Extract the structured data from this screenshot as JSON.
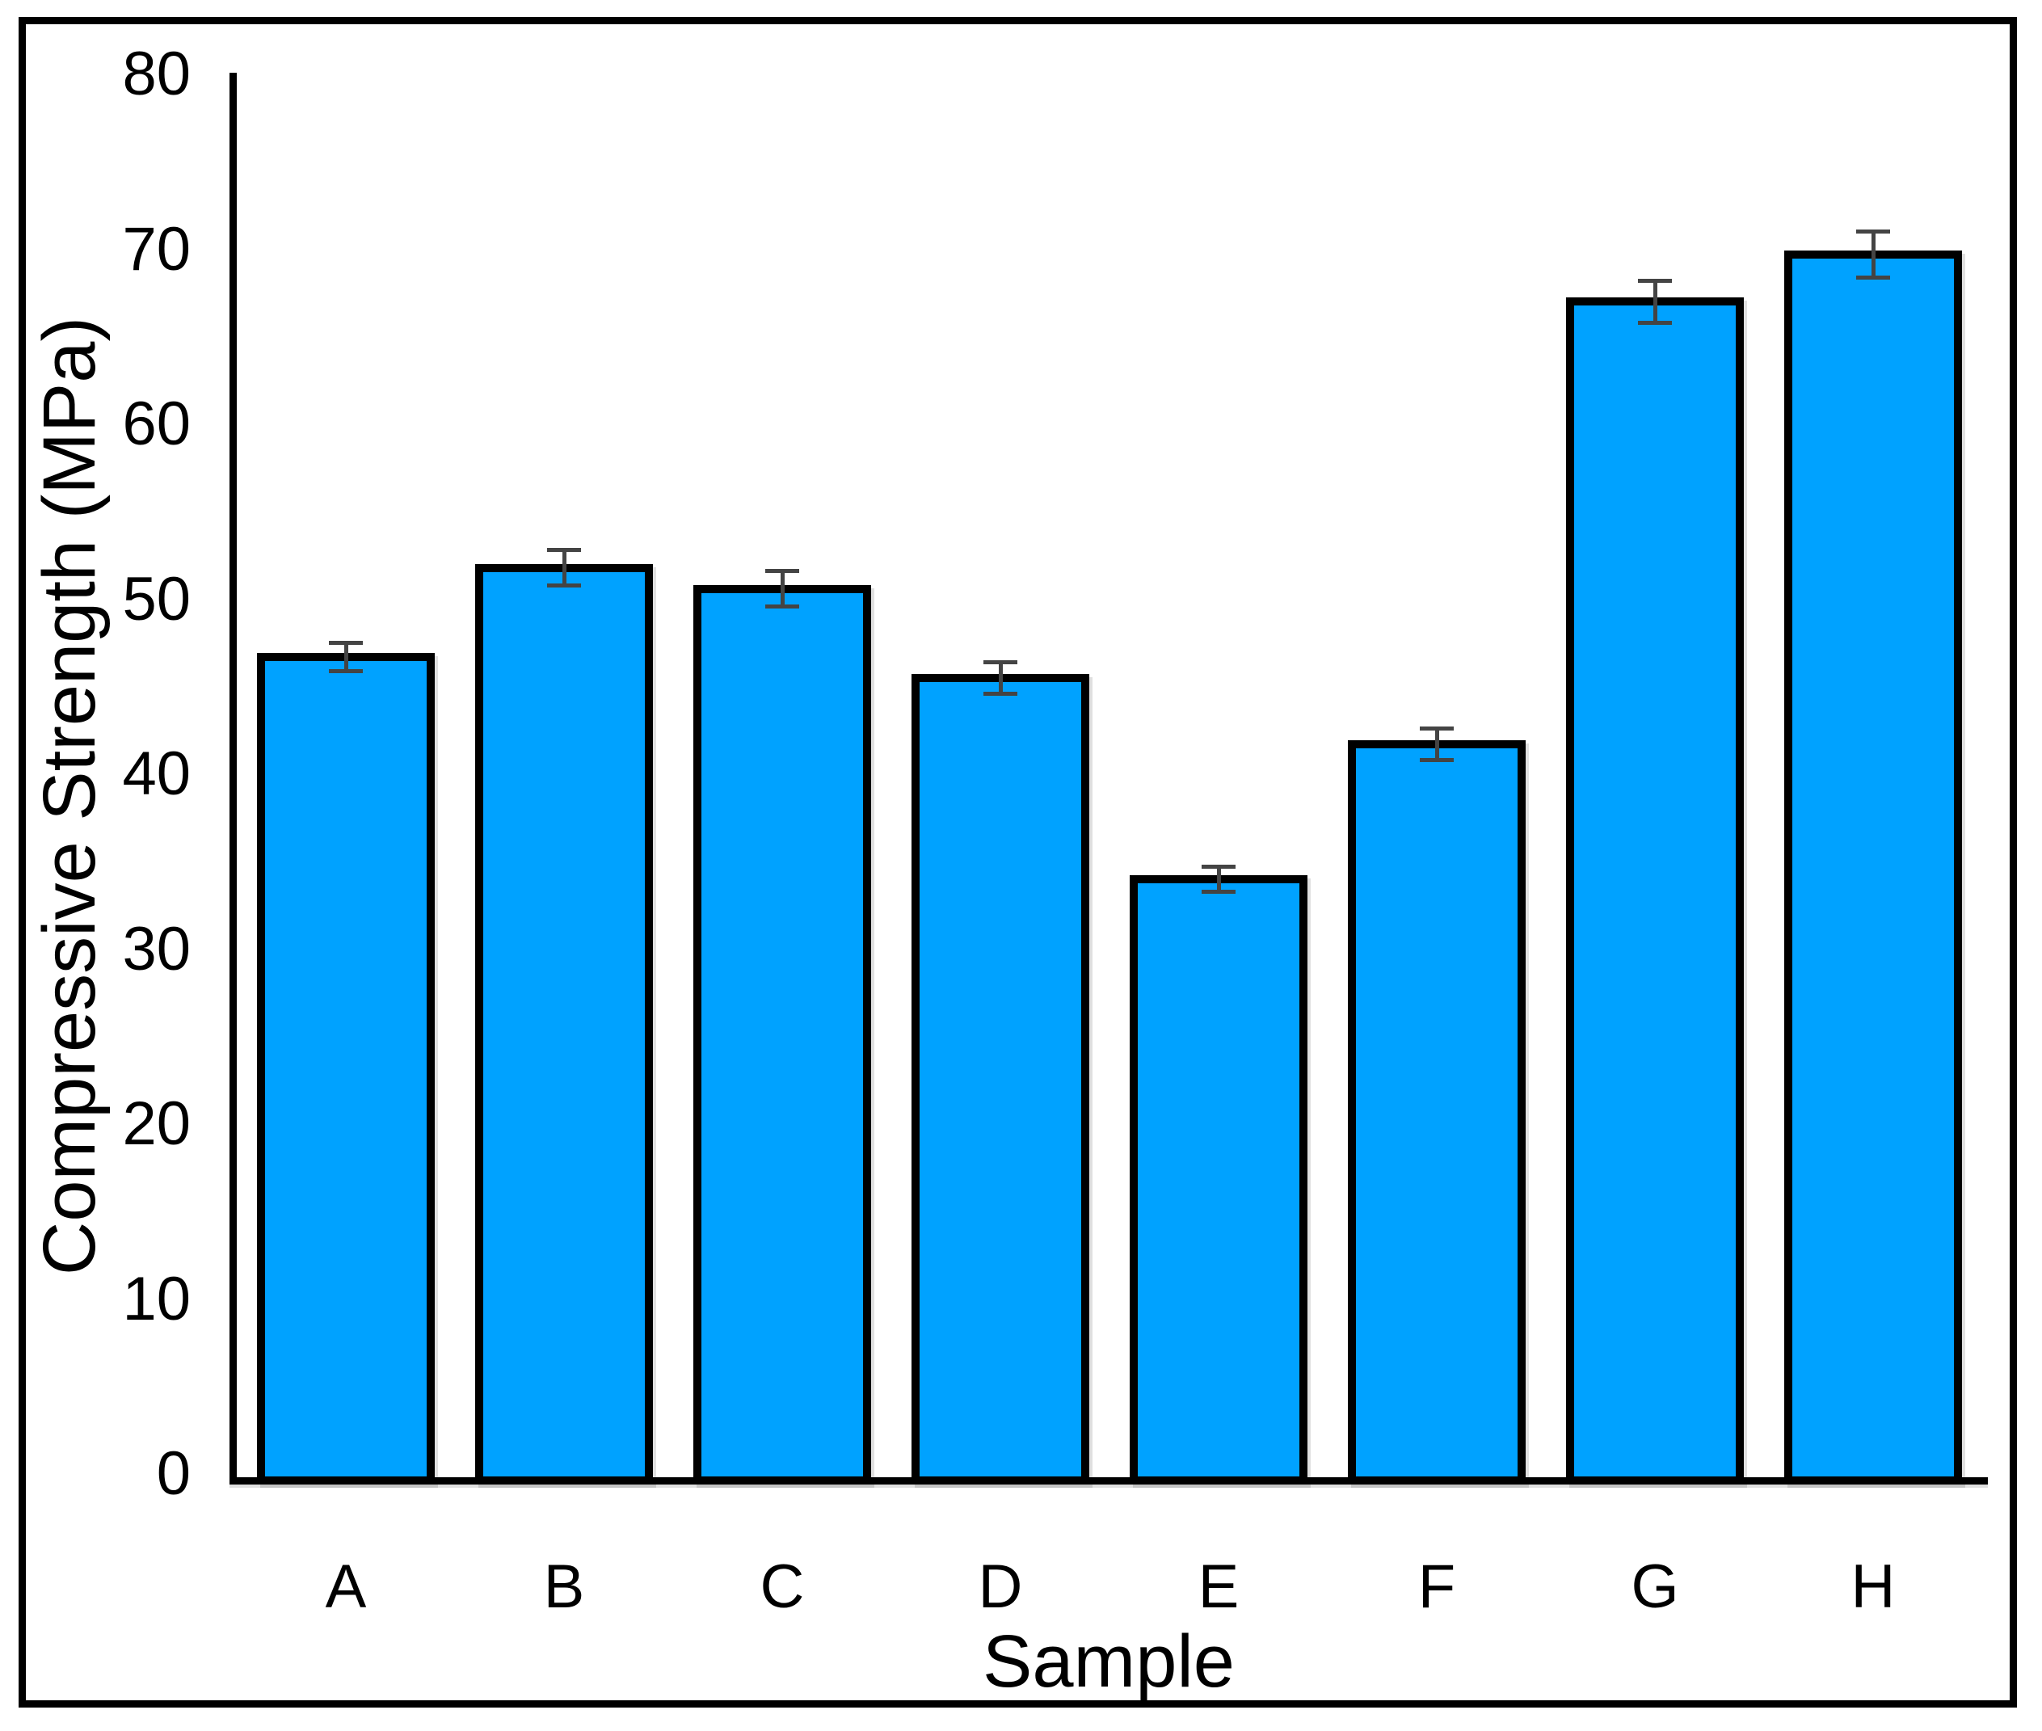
{
  "figure": {
    "background": "#FFFFFF",
    "frame_color": "#000000"
  },
  "chart_data": {
    "type": "bar",
    "title": "",
    "xlabel": "Sample",
    "ylabel": "Compressive Strength (MPa)",
    "categories": [
      "A",
      "B",
      "C",
      "D",
      "E",
      "F",
      "G",
      "H"
    ],
    "values": [
      46.7,
      51.8,
      50.6,
      45.5,
      34.0,
      41.7,
      67.0,
      69.7
    ],
    "error_bars_plus_minus": [
      0.8,
      1.0,
      1.0,
      0.9,
      0.7,
      0.9,
      1.2,
      1.3
    ],
    "ylim": [
      0,
      80
    ],
    "yticks": [
      0,
      10,
      20,
      30,
      40,
      50,
      60,
      70,
      80
    ],
    "ytick_labels": [
      "0",
      "10",
      "20",
      "30",
      "40",
      "50",
      "60",
      "70",
      "80"
    ],
    "grid": false,
    "legend": null,
    "bar_fill_color": "#00A2FF",
    "bar_border_color": "#000000",
    "error_bar_color": "#444444",
    "axis_line_color": "#000000"
  }
}
